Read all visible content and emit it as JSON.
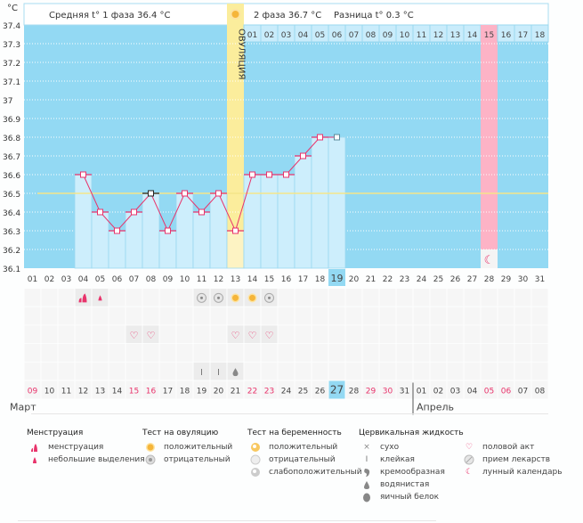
{
  "unit_label": "°C",
  "header": {
    "phase1": "Средняя t° 1 фаза 36.4 °C",
    "phase2": "2 фаза 36.7 °C",
    "diff": "Разница t° 0.3 °C",
    "ovulation_label": "ОВУЛЯЦИЯ"
  },
  "colors": {
    "bg_blue": "#93d9f3",
    "bar": "#cdeefc",
    "ovulation": "#fbed9c",
    "moon_col": "#fdb3c6",
    "line": "#e8336b",
    "avg": "#f5e58a"
  },
  "phase2_days": [
    "01",
    "02",
    "03",
    "04",
    "05",
    "06",
    "07",
    "08",
    "09",
    "10",
    "11",
    "12",
    "13",
    "14",
    "15",
    "16",
    "17",
    "18"
  ],
  "cycle_days": [
    "01",
    "02",
    "03",
    "04",
    "05",
    "06",
    "07",
    "08",
    "09",
    "10",
    "11",
    "12",
    "13",
    "14",
    "15",
    "16",
    "17",
    "18",
    "19",
    "20",
    "21",
    "22",
    "23",
    "24",
    "25",
    "26",
    "27",
    "28",
    "29",
    "30",
    "31"
  ],
  "today_cycle_day": 19,
  "ovulation_day": 13,
  "moon_day": 28,
  "chart_data": {
    "type": "line",
    "title": "",
    "ylabel": "°C",
    "ylim": [
      36.1,
      37.4
    ],
    "yticks": [
      "37.4",
      "37.3",
      "37.2",
      "37.1",
      "37",
      "36.9",
      "36.8",
      "36.7",
      "36.6",
      "36.5",
      "36.4",
      "36.3",
      "36.2",
      "36.1"
    ],
    "average_line": 36.5,
    "x": [
      4,
      5,
      6,
      7,
      8,
      9,
      10,
      11,
      12,
      13,
      14,
      15,
      16,
      17,
      18,
      19
    ],
    "values": [
      36.6,
      36.4,
      36.3,
      36.4,
      36.5,
      36.3,
      36.5,
      36.4,
      36.5,
      36.3,
      36.6,
      36.6,
      36.6,
      36.7,
      36.8,
      36.8
    ]
  },
  "rows": [
    {
      "name": "row-menstruation-ovtest",
      "cells": {
        "4": "menstruation-heavy",
        "5": "menstruation-light",
        "11": "ovtest-negative",
        "12": "ovtest-negative",
        "13": "ovtest-positive",
        "14": "ovtest-positive",
        "15": "ovtest-negative"
      }
    },
    {
      "name": "row-pregnancy-test",
      "cells": {}
    },
    {
      "name": "row-intercourse",
      "cells": {
        "7": "heart",
        "8": "heart",
        "13": "heart",
        "14": "heart",
        "15": "heart"
      }
    },
    {
      "name": "row-medication",
      "cells": {}
    },
    {
      "name": "row-cervical-fluid",
      "cells": {
        "11": "sticky",
        "12": "sticky",
        "13": "watery"
      }
    }
  ],
  "dates": [
    "09",
    "10",
    "11",
    "12",
    "13",
    "14",
    "15",
    "16",
    "17",
    "18",
    "19",
    "20",
    "21",
    "22",
    "23",
    "24",
    "25",
    "26",
    "27",
    "28",
    "29",
    "30",
    "31",
    "01",
    "02",
    "03",
    "04",
    "05",
    "06",
    "07",
    "08"
  ],
  "red_dates_idx": [
    1,
    7,
    8,
    14,
    15,
    21,
    22,
    28,
    29
  ],
  "months": {
    "first": "Март",
    "second": "Апрель",
    "second_start_day": 24
  },
  "legend": {
    "menstruation": {
      "title": "Менструация",
      "items": [
        "менструация",
        "небольшие выделения"
      ]
    },
    "ovtest": {
      "title": "Тест на овуляцию",
      "items": [
        "положительный",
        "отрицательный"
      ]
    },
    "pregtest": {
      "title": "Тест на беременность",
      "items": [
        "положительный",
        "отрицательный",
        "слабоположительный"
      ]
    },
    "cervical": {
      "title": "Цервикальная жидкость",
      "items": [
        "сухо",
        "клейкая",
        "кремообразная",
        "водянистая",
        "яичный белок"
      ]
    },
    "other": {
      "items": [
        "половой акт",
        "прием лекарств",
        "лунный календарь"
      ]
    }
  }
}
